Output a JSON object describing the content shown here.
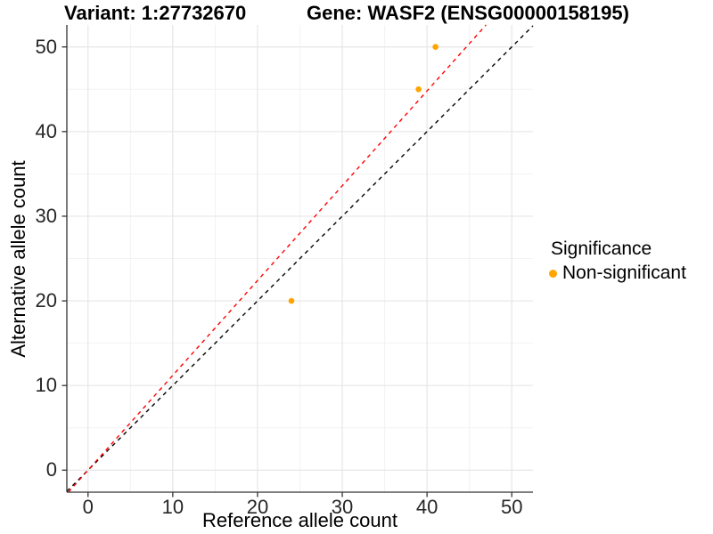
{
  "header": {
    "variant_title": "Variant: 1:27732670",
    "gene_title": "Gene: WASF2 (ENSG00000158195)"
  },
  "axes": {
    "x": {
      "label": "Reference allele count"
    },
    "y": {
      "label": "Alternative allele count"
    }
  },
  "legend": {
    "title": "Significance",
    "items": [
      {
        "label": "Non-significant",
        "color": "#FFA500"
      }
    ]
  },
  "style": {
    "background": "#ffffff",
    "grid_major": "#e6e6e6",
    "grid_minor": "#f2f2f2",
    "axis_color": "#333333",
    "tick_label_color": "#262626",
    "point_color": "#FFA500",
    "identity_line_color": "#000000",
    "fit_line_color": "#ff0000"
  },
  "chart_data": {
    "type": "scatter",
    "title_left": "Variant: 1:27732670",
    "title_right": "Gene: WASF2 (ENSG00000158195)",
    "xlabel": "Reference allele count",
    "ylabel": "Alternative allele count",
    "xlim": [
      -2.5,
      52.5
    ],
    "ylim": [
      -2.6,
      52.6
    ],
    "x_major_ticks": [
      0,
      10,
      20,
      30,
      40,
      50
    ],
    "y_major_ticks": [
      0,
      10,
      20,
      30,
      40,
      50
    ],
    "x_minor_ticks": [
      5,
      15,
      25,
      35,
      45
    ],
    "y_minor_ticks": [
      5,
      15,
      25,
      35,
      45
    ],
    "grid": true,
    "legend_position": "right",
    "series": [
      {
        "name": "Non-significant",
        "color": "#FFA500",
        "point_radius": 3.3,
        "points": [
          [
            24,
            20
          ],
          [
            39,
            45
          ],
          [
            41,
            50
          ]
        ]
      }
    ],
    "reference_lines": [
      {
        "name": "identity-line",
        "slope": 1.0,
        "intercept": 0,
        "color": "#000000",
        "style": "dashed"
      },
      {
        "name": "fitted-line",
        "slope": 1.12,
        "intercept": 0,
        "color": "#ff0000",
        "style": "dashed"
      }
    ]
  }
}
